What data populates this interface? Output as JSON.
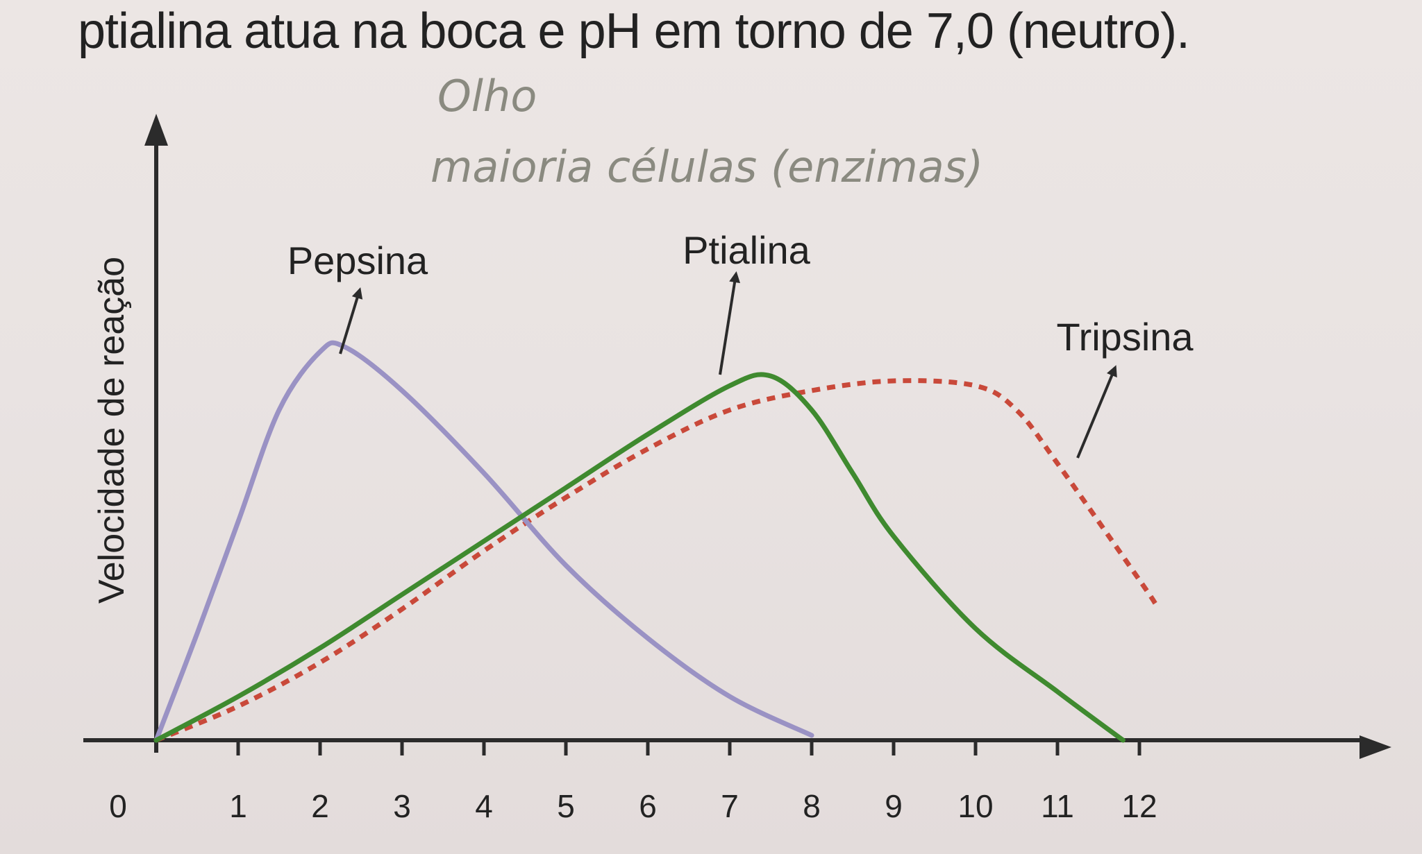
{
  "heading": "ptialina atua na boca e pH em torno de 7,0 (neutro).",
  "handwriting": {
    "line1": "Olho",
    "line2": "maioria células (enzimas)"
  },
  "chart_data": {
    "type": "line",
    "title": "",
    "xlabel": "",
    "ylabel": "Velocidade de reação",
    "xlim": [
      0,
      13
    ],
    "ylim": [
      0,
      1
    ],
    "x_ticks": [
      "0",
      "1",
      "2",
      "3",
      "4",
      "5",
      "6",
      "7",
      "8",
      "9",
      "10",
      "11",
      "12"
    ],
    "grid": false,
    "series": [
      {
        "name": "Pepsina",
        "color": "#9a92c4",
        "style": "solid",
        "points": [
          [
            0,
            0
          ],
          [
            0.5,
            0.22
          ],
          [
            1,
            0.45
          ],
          [
            1.5,
            0.68
          ],
          [
            2,
            0.8
          ],
          [
            2.3,
            0.81
          ],
          [
            3,
            0.72
          ],
          [
            4,
            0.55
          ],
          [
            5,
            0.36
          ],
          [
            6,
            0.21
          ],
          [
            7,
            0.09
          ],
          [
            8,
            0.01
          ]
        ]
      },
      {
        "name": "Ptialina",
        "color": "#3f8a2f",
        "style": "solid",
        "points": [
          [
            0,
            0
          ],
          [
            1,
            0.09
          ],
          [
            2,
            0.19
          ],
          [
            3,
            0.3
          ],
          [
            4,
            0.41
          ],
          [
            5,
            0.52
          ],
          [
            6,
            0.63
          ],
          [
            7,
            0.73
          ],
          [
            7.5,
            0.75
          ],
          [
            8,
            0.68
          ],
          [
            8.5,
            0.55
          ],
          [
            9,
            0.42
          ],
          [
            10,
            0.23
          ],
          [
            11,
            0.1
          ],
          [
            11.8,
            0
          ]
        ]
      },
      {
        "name": "Tripsina",
        "color": "#c9493a",
        "style": "dashed",
        "points": [
          [
            0,
            0
          ],
          [
            1,
            0.07
          ],
          [
            2,
            0.16
          ],
          [
            3,
            0.27
          ],
          [
            4,
            0.39
          ],
          [
            5,
            0.5
          ],
          [
            6,
            0.6
          ],
          [
            7,
            0.68
          ],
          [
            8,
            0.72
          ],
          [
            9,
            0.74
          ],
          [
            10,
            0.73
          ],
          [
            10.5,
            0.68
          ],
          [
            11,
            0.57
          ],
          [
            12,
            0.33
          ],
          [
            12.2,
            0.28
          ]
        ]
      }
    ]
  }
}
